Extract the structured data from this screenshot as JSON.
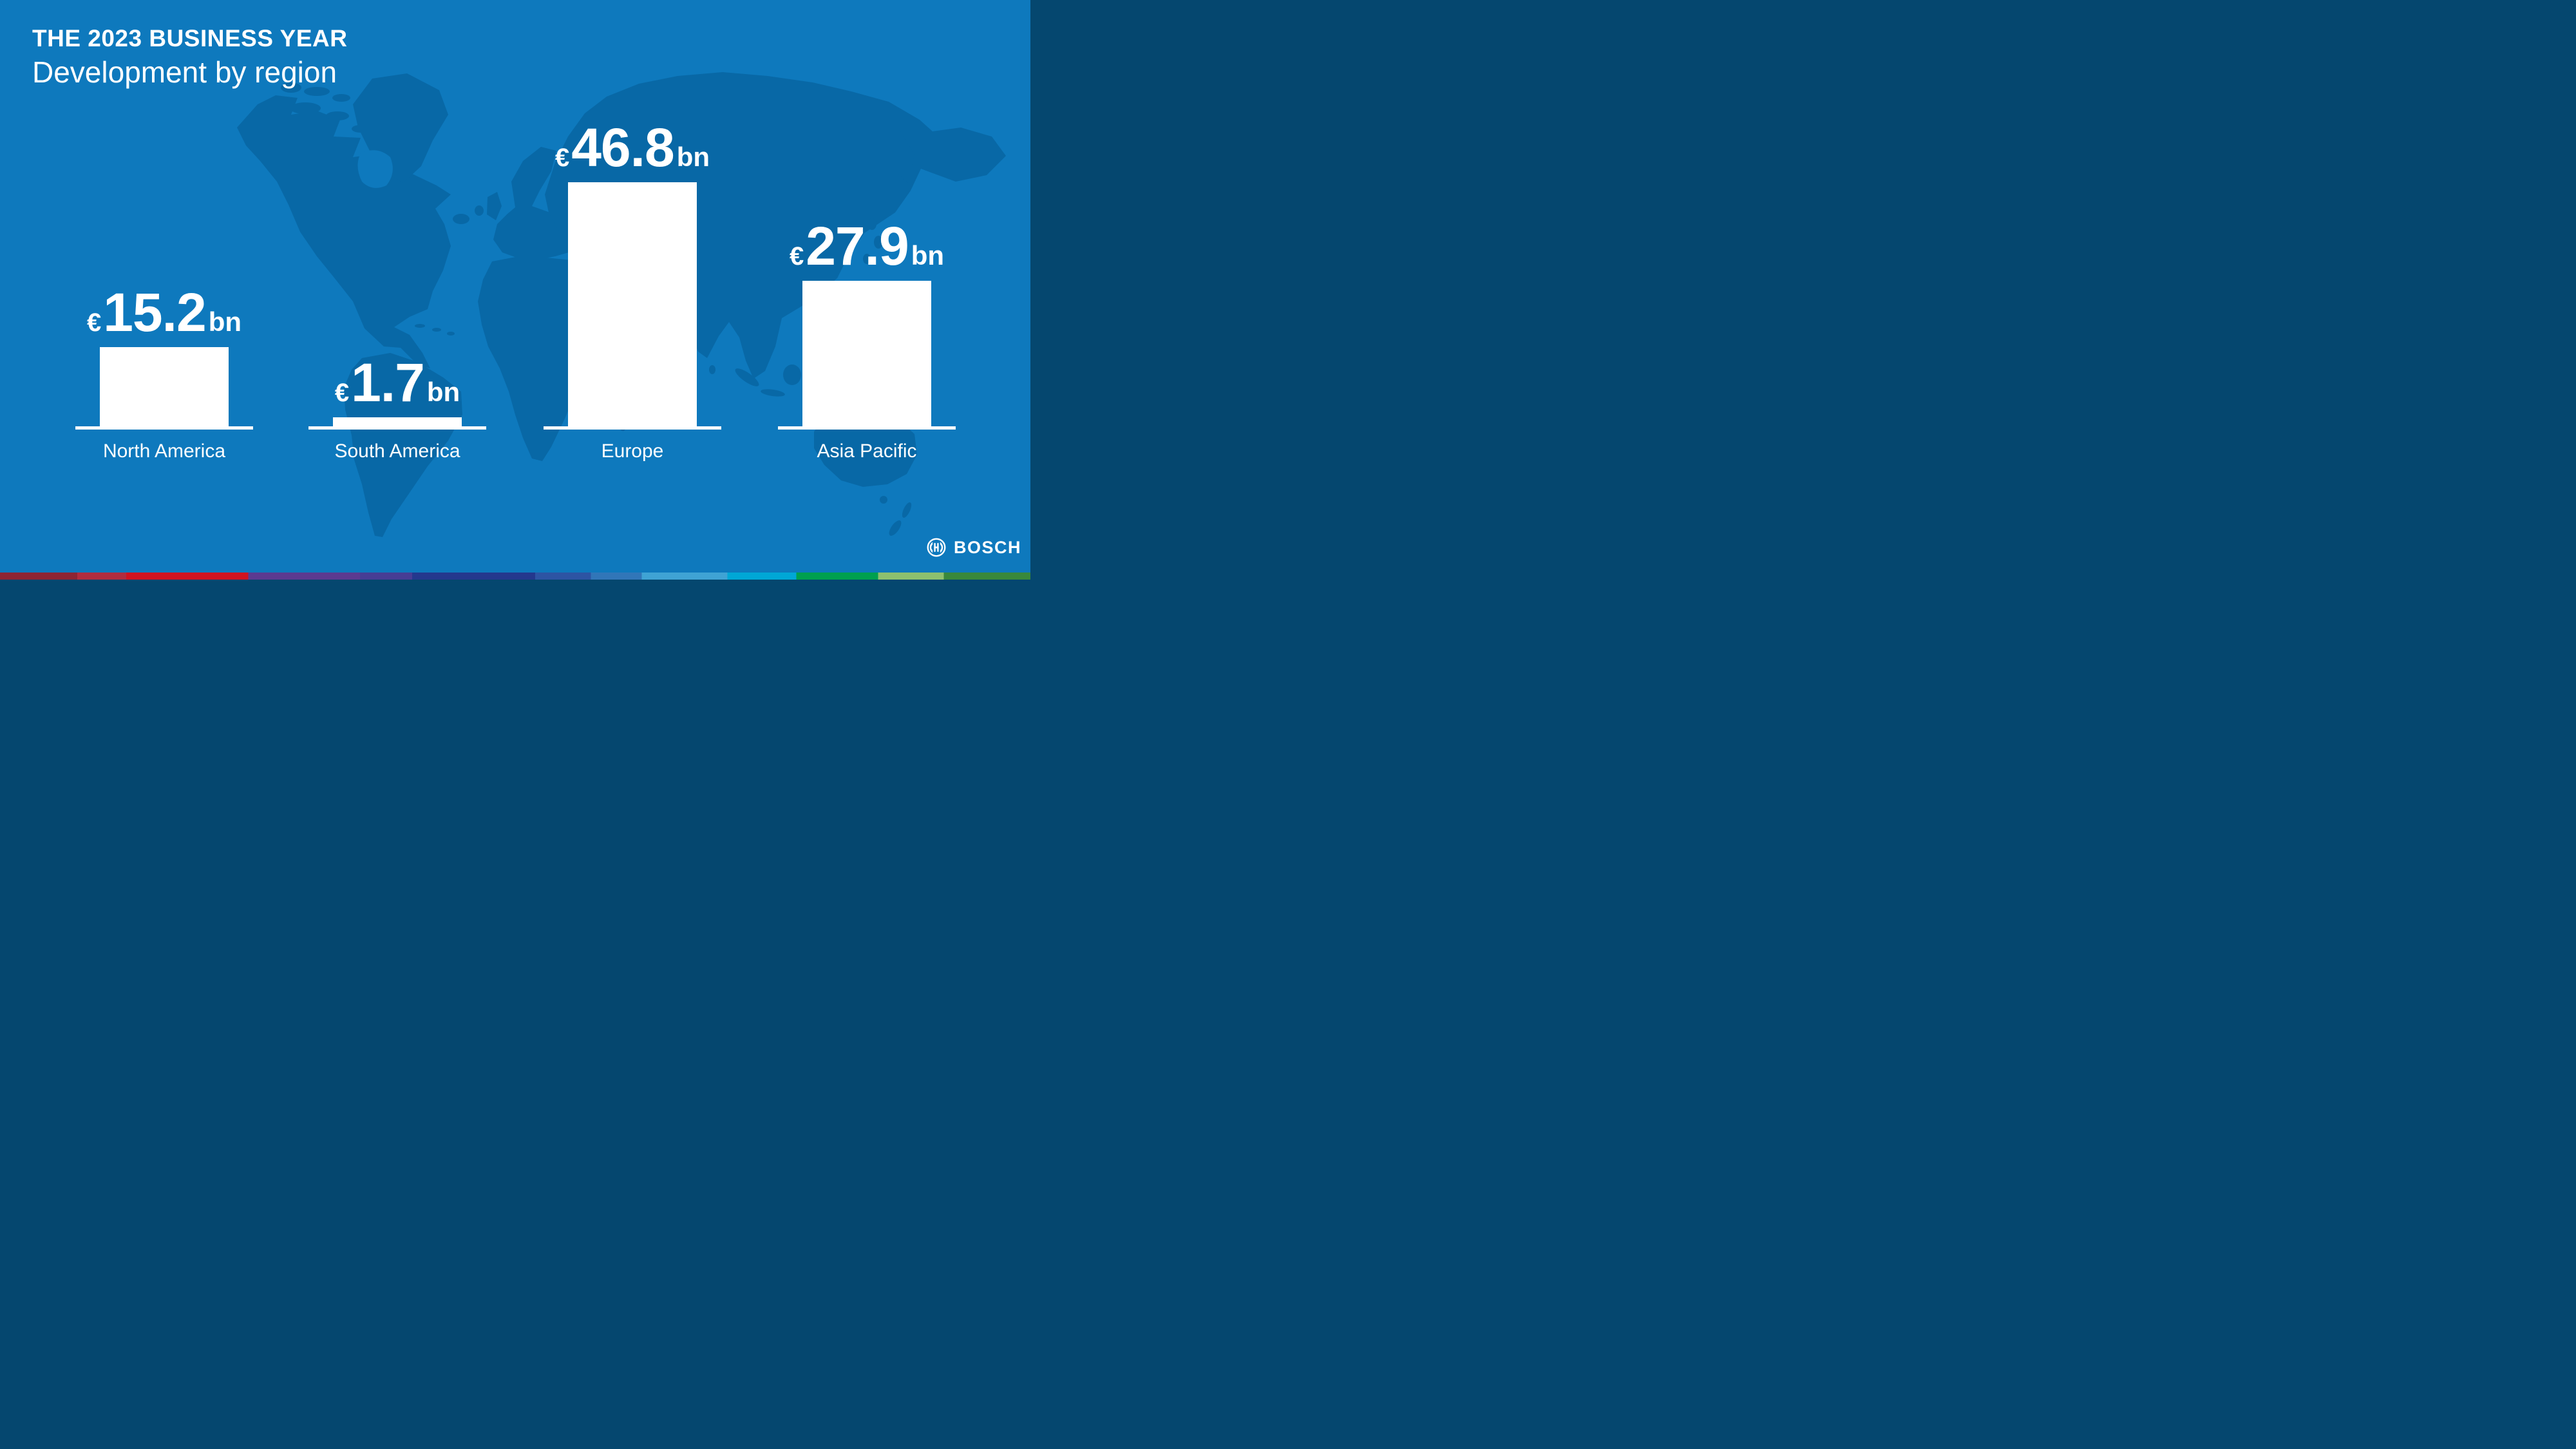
{
  "header": {
    "kicker": "THE 2023 BUSINESS YEAR",
    "title": "Development by region"
  },
  "chart_data": {
    "type": "bar",
    "title": "Development by region",
    "categories": [
      "North America",
      "South America",
      "Europe",
      "Asia Pacific"
    ],
    "values": [
      15.2,
      1.7,
      46.8,
      27.9
    ],
    "unit": "€bn",
    "value_labels": [
      {
        "prefix": "€",
        "number": "15.2",
        "suffix": "bn"
      },
      {
        "prefix": "€",
        "number": "1.7",
        "suffix": "bn"
      },
      {
        "prefix": "€",
        "number": "46.8",
        "suffix": "bn"
      },
      {
        "prefix": "€",
        "number": "27.9",
        "suffix": "bn"
      }
    ],
    "bar_color": "#ffffff",
    "axis": {
      "baseline_color": "#ffffff",
      "gridlines": false,
      "value_axis_visible": false
    },
    "ylim": [
      0,
      50
    ],
    "legend": "none",
    "label_position": "above-bar"
  },
  "brand": {
    "name": "BOSCH",
    "symbol": "bosch-anchor-icon"
  },
  "colors": {
    "background": "#0e79bd",
    "map_land": "#0868a6",
    "bar": "#ffffff",
    "text": "#ffffff"
  },
  "stripe_segments": [
    {
      "color": "#8E2433",
      "to": 0.075
    },
    {
      "color": "#B12C3E",
      "to": 0.1225
    },
    {
      "color": "#D01320",
      "to": 0.2408
    },
    {
      "color": "#5C3A90",
      "to": 0.3493
    },
    {
      "color": "#473D94",
      "to": 0.4
    },
    {
      "color": "#24388D",
      "to": 0.5193
    },
    {
      "color": "#2D54A3",
      "to": 0.5733
    },
    {
      "color": "#3176B8",
      "to": 0.6228
    },
    {
      "color": "#3FA3D4",
      "to": 0.7058
    },
    {
      "color": "#00A7D6",
      "to": 0.7728
    },
    {
      "color": "#00A04F",
      "to": 0.8523
    },
    {
      "color": "#8DC06E",
      "to": 0.916
    },
    {
      "color": "#39883B",
      "to": 1.0
    }
  ]
}
